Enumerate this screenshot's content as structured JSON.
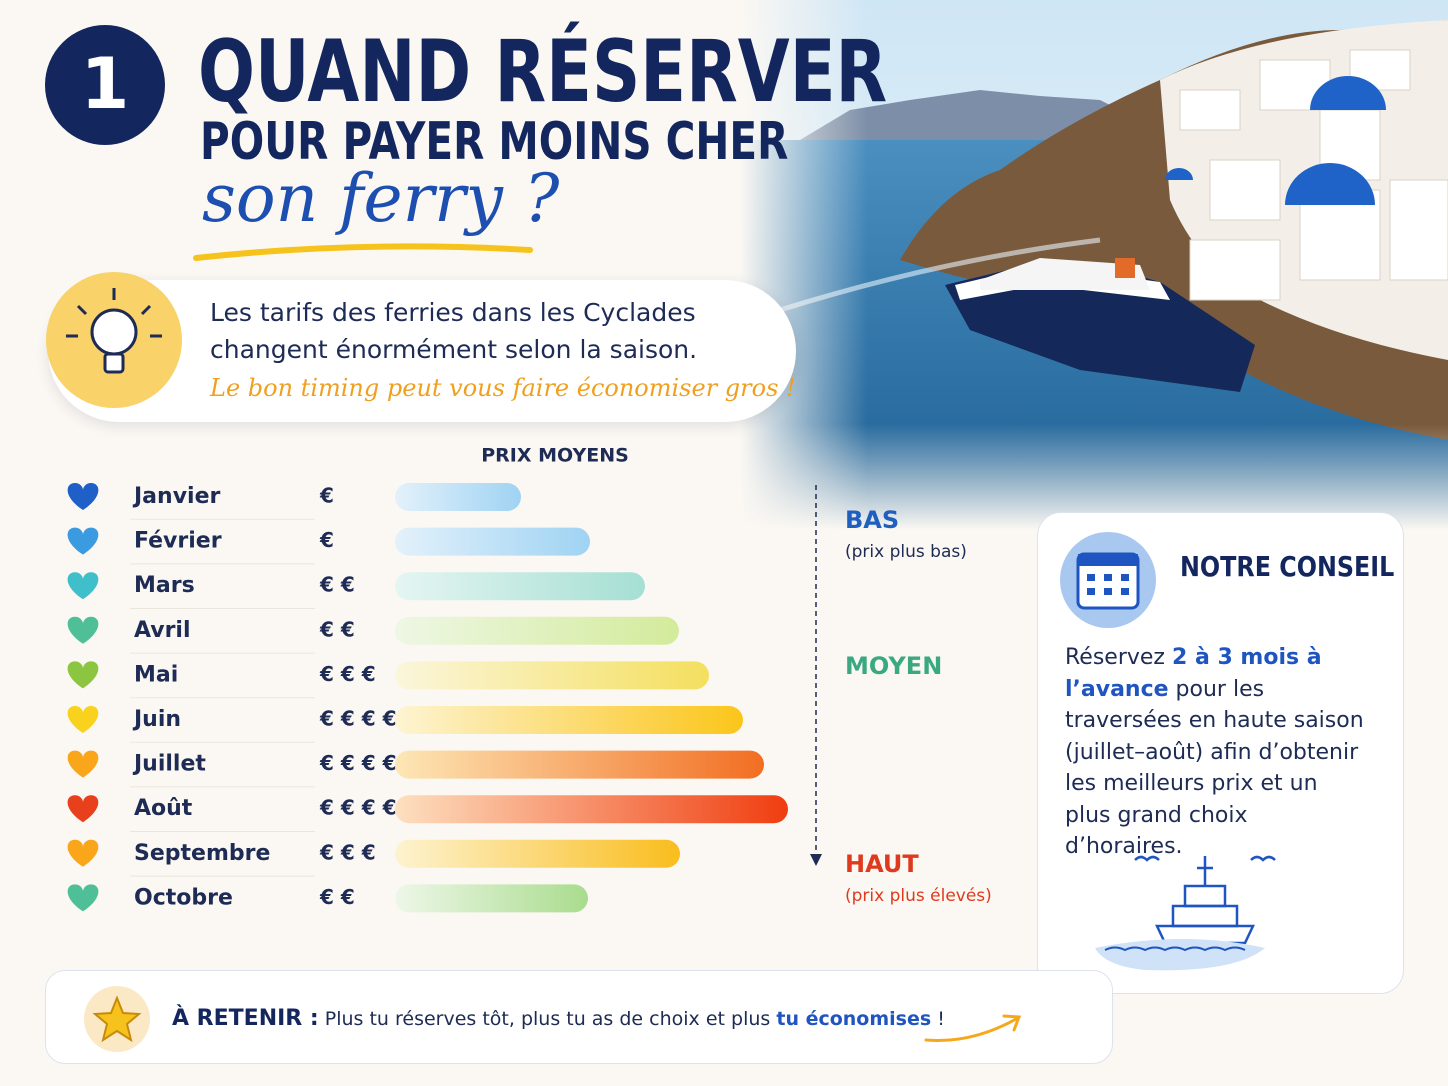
{
  "badge": "1",
  "header": {
    "title": "QUAND RÉSERVER",
    "subtitle": "POUR PAYER MOINS CHER",
    "script": "son ferry ?"
  },
  "intro": {
    "text": "Les tarifs des ferries dans les Cyclades changent énormément selon la saison.",
    "tagline": "Le bon timing peut vous faire économiser gros !"
  },
  "chart_data": {
    "type": "bar",
    "title": "PRIX MOYENS",
    "categories": [
      "Janvier",
      "Février",
      "Mars",
      "Avril",
      "Mai",
      "Juin",
      "Juillet",
      "Août",
      "Septembre",
      "Octobre"
    ],
    "price_labels": [
      "€",
      "€",
      "€ €",
      "€ €",
      "€ € €",
      "€ € € €",
      "€ € € € €",
      "€ € € € €",
      "€ € €",
      "€ €"
    ],
    "values": [
      126,
      195,
      250,
      284,
      314,
      348,
      369,
      393,
      285,
      193
    ],
    "heart_colors": [
      "#1f5fc8",
      "#3a9be0",
      "#3fbfc9",
      "#4fbf98",
      "#8cc53f",
      "#f8d21c",
      "#f9a61a",
      "#e8401c",
      "#f9a61a",
      "#4fbf98"
    ],
    "bar_colors": [
      [
        "#e3f1fb",
        "#9fd3f3"
      ],
      [
        "#e3f1fb",
        "#9fd3f3"
      ],
      [
        "#e5f5f2",
        "#a5dfd3"
      ],
      [
        "#eef7e4",
        "#d3eb9b"
      ],
      [
        "#fbf6dc",
        "#f4df5e"
      ],
      [
        "#fdf4d2",
        "#fbc51a"
      ],
      [
        "#fde7b6",
        "#f26e22"
      ],
      [
        "#fde0c0",
        "#f03d10"
      ],
      [
        "#fdf3d0",
        "#f9bd1d"
      ],
      [
        "#eef7e8",
        "#a9dc8e"
      ]
    ]
  },
  "scale": {
    "low": {
      "label": "BAS",
      "note": "(prix plus bas)"
    },
    "mid": {
      "label": "MOYEN"
    },
    "high": {
      "label": "HAUT",
      "note": "(prix plus élevés)"
    }
  },
  "advice": {
    "title": "NOTRE CONSEIL",
    "text": [
      "Réservez ",
      "2 à 3 mois à l’avance",
      " pour les traversées en haute saison (juillet–août) afin d’obtenir les meilleurs prix et un plus grand choix d’horaires."
    ]
  },
  "footer": {
    "label": "À RETENIR :",
    "text": "Plus tu réserves tôt, plus tu as de choix et plus",
    "emphasis": "tu économises",
    "end": "!"
  }
}
